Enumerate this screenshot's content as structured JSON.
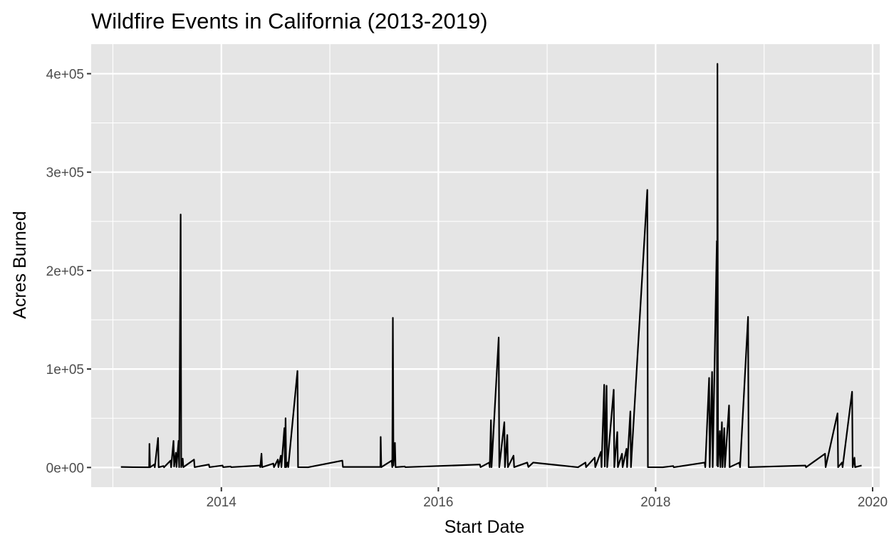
{
  "chart_data": {
    "type": "line",
    "title": "Wildfire Events in California (2013-2019)",
    "xlabel": "Start Date",
    "ylabel": "Acres Burned",
    "xlim": [
      "2012-10-20",
      "2020-01-25"
    ],
    "ylim": [
      -20000,
      430000
    ],
    "x_ticks": [
      {
        "value": "2014-01-01",
        "label": "2014"
      },
      {
        "value": "2016-01-01",
        "label": "2016"
      },
      {
        "value": "2018-01-01",
        "label": "2018"
      },
      {
        "value": "2020-01-01",
        "label": "2020"
      }
    ],
    "x_minor_ticks": [
      "2013-01-01",
      "2015-01-01",
      "2017-01-01",
      "2019-01-01"
    ],
    "y_ticks": [
      {
        "value": 0,
        "label": "0e+00"
      },
      {
        "value": 100000,
        "label": "1e+05"
      },
      {
        "value": 200000,
        "label": "2e+05"
      },
      {
        "value": 300000,
        "label": "3e+05"
      },
      {
        "value": 400000,
        "label": "4e+05"
      }
    ],
    "y_minor_ticks": [
      50000,
      150000,
      250000,
      350000
    ],
    "grid": true,
    "background": "#e5e5e5",
    "grid_color": "#ffffff",
    "line_color": "#000000",
    "series": [
      {
        "points": [
          [
            "2013-01-28",
            500
          ],
          [
            "2013-03-10",
            300
          ],
          [
            "2013-05-03",
            200
          ],
          [
            "2013-05-04",
            24000
          ],
          [
            "2013-05-06",
            200
          ],
          [
            "2013-05-20",
            3000
          ],
          [
            "2013-05-22",
            200
          ],
          [
            "2013-06-02",
            30000
          ],
          [
            "2013-06-04",
            200
          ],
          [
            "2013-06-20",
            1500
          ],
          [
            "2013-06-22",
            200
          ],
          [
            "2013-07-14",
            7000
          ],
          [
            "2013-07-16",
            200
          ],
          [
            "2013-07-24",
            27000
          ],
          [
            "2013-07-26",
            1000
          ],
          [
            "2013-08-01",
            15000
          ],
          [
            "2013-08-03",
            500
          ],
          [
            "2013-08-10",
            27000
          ],
          [
            "2013-08-12",
            300
          ],
          [
            "2013-08-17",
            257000
          ],
          [
            "2013-08-19",
            300
          ],
          [
            "2013-08-24",
            9000
          ],
          [
            "2013-08-26",
            300
          ],
          [
            "2013-10-01",
            8000
          ],
          [
            "2013-10-03",
            300
          ],
          [
            "2013-11-20",
            3000
          ],
          [
            "2013-11-22",
            300
          ],
          [
            "2014-01-05",
            2000
          ],
          [
            "2014-01-07",
            300
          ],
          [
            "2014-02-01",
            1000
          ],
          [
            "2014-02-03",
            300
          ],
          [
            "2014-05-10",
            2000
          ],
          [
            "2014-05-12",
            300
          ],
          [
            "2014-05-16",
            14000
          ],
          [
            "2014-05-18",
            300
          ],
          [
            "2014-06-25",
            4000
          ],
          [
            "2014-06-27",
            300
          ],
          [
            "2014-07-10",
            8000
          ],
          [
            "2014-07-12",
            300
          ],
          [
            "2014-07-20",
            12000
          ],
          [
            "2014-07-22",
            300
          ],
          [
            "2014-08-01",
            40000
          ],
          [
            "2014-08-03",
            300
          ],
          [
            "2014-08-05",
            50000
          ],
          [
            "2014-08-07",
            300
          ],
          [
            "2014-08-12",
            5000
          ],
          [
            "2014-08-14",
            300
          ],
          [
            "2014-09-14",
            98000
          ],
          [
            "2014-09-16",
            300
          ],
          [
            "2014-10-20",
            200
          ],
          [
            "2015-02-12",
            7000
          ],
          [
            "2015-02-14",
            500
          ],
          [
            "2015-06-20",
            500
          ],
          [
            "2015-06-21",
            31000
          ],
          [
            "2015-06-23",
            300
          ],
          [
            "2015-07-28",
            7000
          ],
          [
            "2015-07-30",
            300
          ],
          [
            "2015-07-31",
            75000
          ],
          [
            "2015-08-01",
            152000
          ],
          [
            "2015-08-03",
            2000
          ],
          [
            "2015-08-08",
            25000
          ],
          [
            "2015-08-10",
            300
          ],
          [
            "2015-09-10",
            1000
          ],
          [
            "2015-09-12",
            300
          ],
          [
            "2016-05-20",
            3000
          ],
          [
            "2016-05-22",
            300
          ],
          [
            "2016-06-20",
            5000
          ],
          [
            "2016-06-22",
            300
          ],
          [
            "2016-06-26",
            48000
          ],
          [
            "2016-06-28",
            300
          ],
          [
            "2016-07-22",
            132000
          ],
          [
            "2016-07-24",
            300
          ],
          [
            "2016-08-10",
            46000
          ],
          [
            "2016-08-12",
            300
          ],
          [
            "2016-08-20",
            33000
          ],
          [
            "2016-08-22",
            300
          ],
          [
            "2016-09-10",
            12000
          ],
          [
            "2016-09-12",
            300
          ],
          [
            "2016-10-26",
            5000
          ],
          [
            "2016-10-30",
            500
          ],
          [
            "2016-11-15",
            5000
          ],
          [
            "2017-04-15",
            200
          ],
          [
            "2017-05-10",
            5000
          ],
          [
            "2017-05-12",
            300
          ],
          [
            "2017-06-10",
            10000
          ],
          [
            "2017-06-12",
            300
          ],
          [
            "2017-07-01",
            16000
          ],
          [
            "2017-07-03",
            300
          ],
          [
            "2017-07-12",
            84000
          ],
          [
            "2017-07-14",
            1000
          ],
          [
            "2017-07-20",
            83000
          ],
          [
            "2017-07-22",
            300
          ],
          [
            "2017-08-13",
            79000
          ],
          [
            "2017-08-15",
            300
          ],
          [
            "2017-08-25",
            36000
          ],
          [
            "2017-08-27",
            300
          ],
          [
            "2017-09-10",
            14000
          ],
          [
            "2017-09-12",
            300
          ],
          [
            "2017-09-25",
            19000
          ],
          [
            "2017-09-27",
            300
          ],
          [
            "2017-10-08",
            57000
          ],
          [
            "2017-10-10",
            300
          ],
          [
            "2017-12-04",
            282000
          ],
          [
            "2017-12-06",
            300
          ],
          [
            "2018-01-25",
            200
          ],
          [
            "2018-03-01",
            1500
          ],
          [
            "2018-03-03",
            200
          ],
          [
            "2018-06-15",
            5000
          ],
          [
            "2018-06-17",
            300
          ],
          [
            "2018-06-30",
            91000
          ],
          [
            "2018-07-02",
            300
          ],
          [
            "2018-07-10",
            97000
          ],
          [
            "2018-07-12",
            300
          ],
          [
            "2018-07-26",
            230000
          ],
          [
            "2018-07-27",
            2000
          ],
          [
            "2018-07-28",
            410000
          ],
          [
            "2018-07-30",
            1000
          ],
          [
            "2018-08-05",
            37000
          ],
          [
            "2018-08-07",
            300
          ],
          [
            "2018-08-12",
            46000
          ],
          [
            "2018-08-14",
            300
          ],
          [
            "2018-08-20",
            40000
          ],
          [
            "2018-08-22",
            300
          ],
          [
            "2018-09-05",
            63000
          ],
          [
            "2018-09-07",
            300
          ],
          [
            "2018-10-10",
            5000
          ],
          [
            "2018-10-12",
            300
          ],
          [
            "2018-11-08",
            153000
          ],
          [
            "2018-11-10",
            300
          ],
          [
            "2019-05-20",
            2000
          ],
          [
            "2019-05-22",
            200
          ],
          [
            "2019-07-25",
            14000
          ],
          [
            "2019-07-27",
            300
          ],
          [
            "2019-09-05",
            55000
          ],
          [
            "2019-09-07",
            300
          ],
          [
            "2019-09-20",
            5000
          ],
          [
            "2019-09-22",
            300
          ],
          [
            "2019-10-24",
            77000
          ],
          [
            "2019-10-26",
            300
          ],
          [
            "2019-11-01",
            10000
          ],
          [
            "2019-11-03",
            300
          ],
          [
            "2019-11-25",
            2000
          ]
        ]
      }
    ]
  }
}
